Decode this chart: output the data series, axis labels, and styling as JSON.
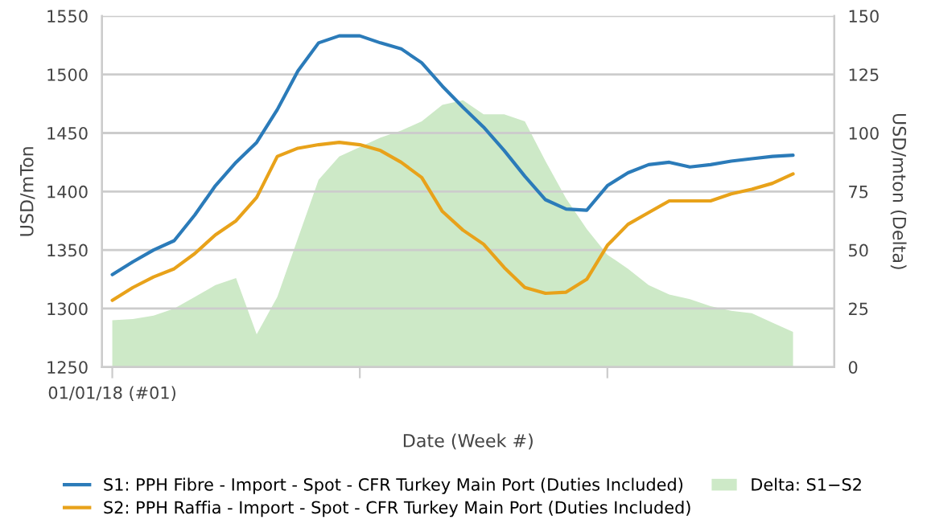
{
  "chart_data": {
    "type": "line",
    "xlabel": "Date (Week #)",
    "ylabel": "USD/mTon",
    "y2label": "USD/mton (Delta)",
    "categories": [
      "01/01/18 (#01)",
      null,
      null,
      null,
      null,
      null,
      null,
      null,
      null,
      null,
      null,
      null,
      null,
      null,
      null,
      null,
      null,
      null,
      null,
      null,
      null,
      null,
      null,
      null,
      null,
      null,
      null,
      null,
      null,
      null,
      null,
      null,
      null,
      null
    ],
    "series": [
      {
        "name": "Delta: S1−S2",
        "type": "area",
        "axis": "y2",
        "color": "#cde9c7",
        "values": [
          20,
          20.5,
          22,
          25,
          30,
          35,
          38,
          14,
          30,
          55,
          80,
          90,
          94,
          98,
          101,
          105,
          112,
          114,
          108,
          108,
          105,
          88,
          72,
          59,
          48,
          42,
          35,
          31,
          29,
          26,
          24,
          23,
          19,
          15
        ]
      },
      {
        "name": "S1: PPH Fibre - Import - Spot - CFR Turkey Main Port (Duties Included)",
        "color": "#2b7bb9",
        "values": [
          1329,
          1340,
          1350,
          1358,
          1380,
          1405,
          1425,
          1442,
          1470,
          1503,
          1527,
          1533,
          1533,
          1527,
          1522,
          1510,
          1490,
          1472,
          1455,
          1435,
          1413,
          1393,
          1385,
          1384,
          1405,
          1416,
          1423,
          1425,
          1421,
          1423,
          1426,
          1428,
          1430,
          1431
        ]
      },
      {
        "name": "S2: PPH Raffia - Import - Spot - CFR Turkey Main Port (Duties Included)",
        "color": "#e8a21a",
        "values": [
          1307,
          1318,
          1327,
          1334,
          1347,
          1363,
          1375,
          1395,
          1430,
          1437,
          1440,
          1442,
          1440,
          1435,
          1425,
          1412,
          1383,
          1367,
          1355,
          1335,
          1318,
          1313,
          1314,
          1325,
          1354,
          1372,
          1382,
          1392,
          1392,
          1392,
          1398,
          1402,
          1407,
          1415
        ]
      }
    ],
    "ylim": [
      1250,
      1550
    ],
    "yticks": [
      1250,
      1300,
      1350,
      1400,
      1450,
      1500,
      1550
    ],
    "y2lim": [
      0,
      150
    ],
    "y2ticks": [
      0,
      25,
      50,
      75,
      100,
      125,
      150
    ],
    "grid": "y",
    "legend": "bottom"
  }
}
